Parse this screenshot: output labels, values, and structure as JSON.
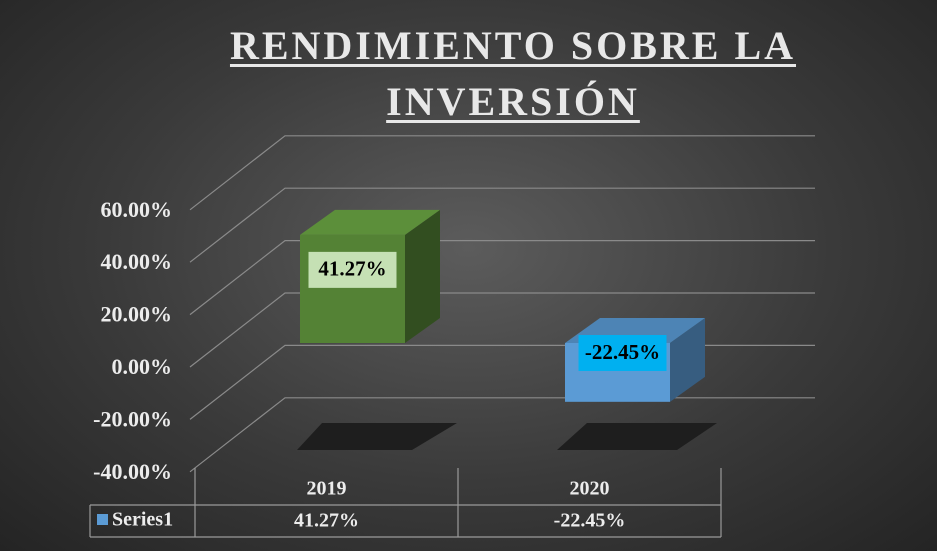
{
  "chart_data": {
    "type": "bar3d",
    "title": "RENDIMIENTO SOBRE LA INVERSIÓN",
    "categories": [
      "2019",
      "2020"
    ],
    "series": [
      {
        "name": "Series1",
        "color": "#5b9bd5",
        "point_colors": [
          "#548235",
          "#5b9bd5"
        ],
        "label_colors": [
          "#c5e0b4",
          "#00b0f0"
        ],
        "values": [
          41.27,
          -22.45
        ],
        "value_labels": [
          "41.27%",
          "-22.45%"
        ]
      }
    ],
    "ylim": [
      -40,
      60
    ],
    "yticks": [
      {
        "value": -40,
        "label": "-40.00%"
      },
      {
        "value": -20,
        "label": "-20.00%"
      },
      {
        "value": 0,
        "label": "0.00%"
      },
      {
        "value": 20,
        "label": "20.00%"
      },
      {
        "value": 40,
        "label": "40.00%"
      },
      {
        "value": 60,
        "label": "60.00%"
      }
    ],
    "grid": true,
    "data_table": true
  }
}
